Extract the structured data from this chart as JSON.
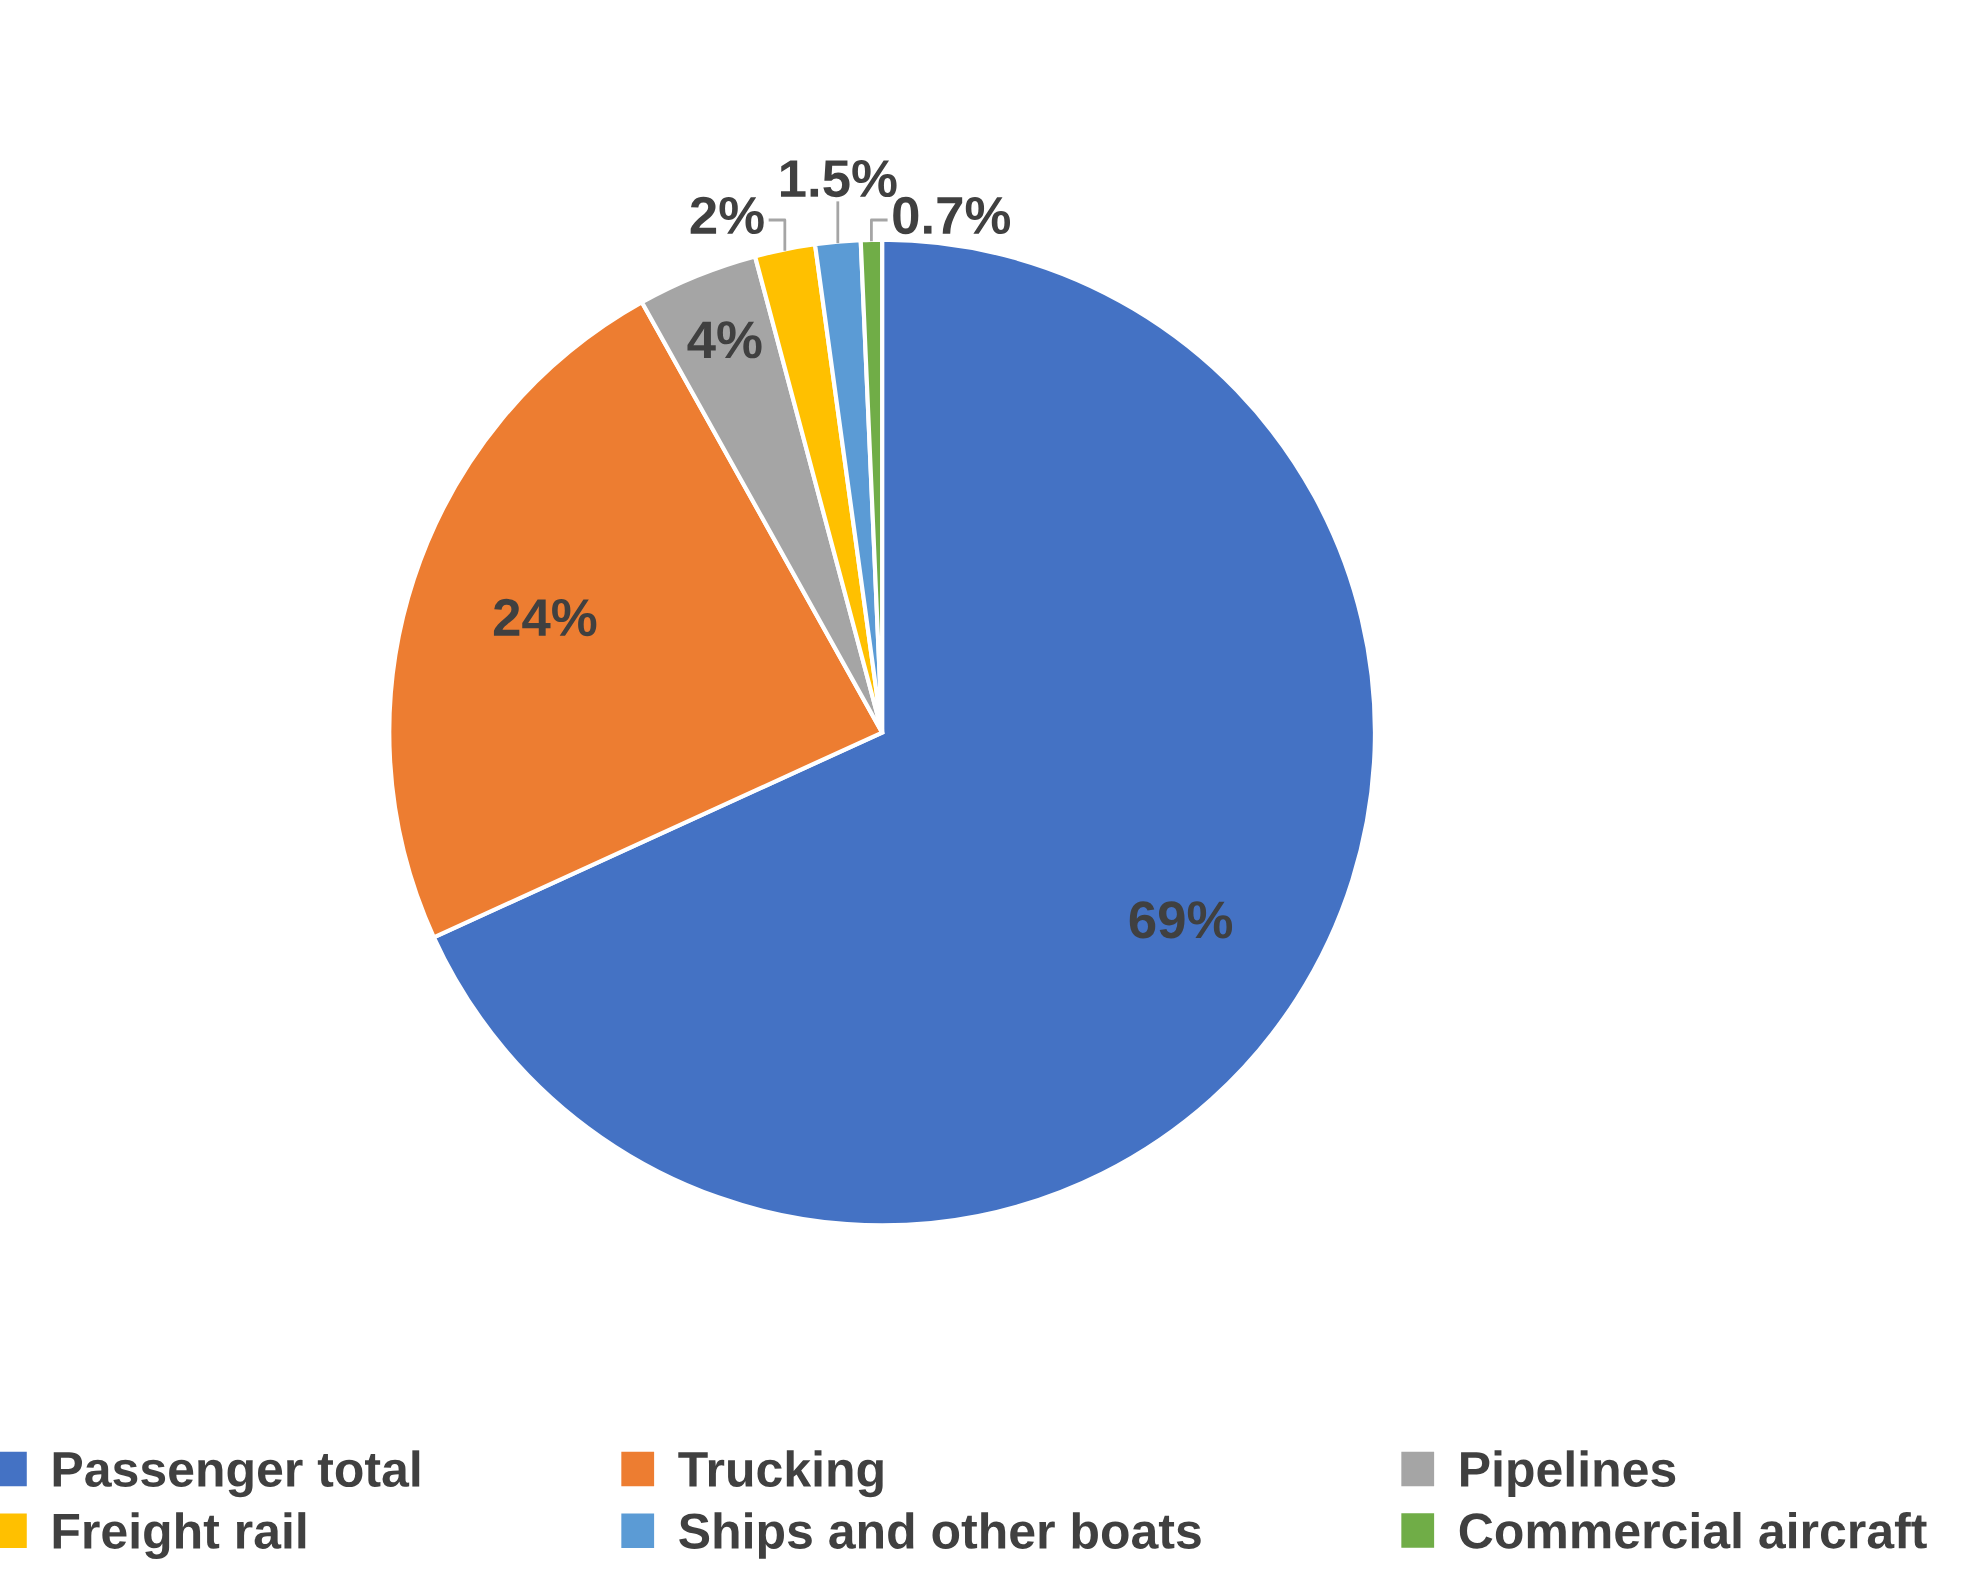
{
  "chart_data": {
    "type": "pie",
    "categories": [
      "Passenger total",
      "Trucking",
      "Pipelines",
      "Freight rail",
      "Ships and other boats",
      "Commercial aircraft"
    ],
    "values": [
      69,
      24,
      4,
      2,
      1.5,
      0.7
    ],
    "colors": [
      "#4472c4",
      "#ed7d31",
      "#a5a5a5",
      "#ffc000",
      "#5b9bd5",
      "#70ad47"
    ],
    "value_labels": [
      "69%",
      "24%",
      "4%",
      "2%",
      "1.5%",
      "0.7%"
    ],
    "legend": "bottom"
  }
}
